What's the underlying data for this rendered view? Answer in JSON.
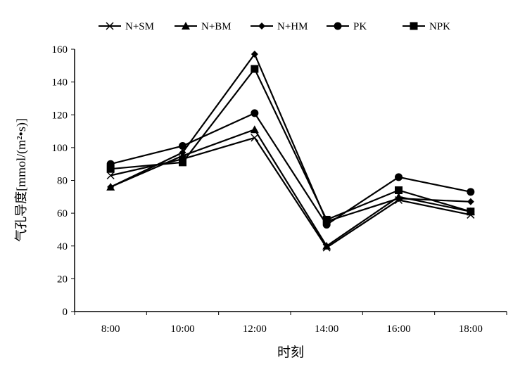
{
  "chart_data": {
    "type": "line",
    "title": "",
    "xlabel": "时刻",
    "ylabel": "气孔导度[mmol/(m²•s)]",
    "categories": [
      "8:00",
      "10:00",
      "12:00",
      "14:00",
      "16:00",
      "18:00"
    ],
    "ylim": [
      0,
      160
    ],
    "yticks": [
      0,
      20,
      40,
      60,
      80,
      100,
      120,
      140,
      160
    ],
    "grid": false,
    "legend_position": "top",
    "series": [
      {
        "name": "N+SM",
        "marker": "x",
        "values": [
          83,
          93,
          106,
          39,
          68,
          59
        ]
      },
      {
        "name": "N+BM",
        "marker": "triangle",
        "values": [
          76,
          95,
          111,
          40,
          70,
          61
        ]
      },
      {
        "name": "N+HM",
        "marker": "diamond",
        "values": [
          76,
          97,
          157,
          55,
          69,
          67
        ]
      },
      {
        "name": "PK",
        "marker": "circle",
        "values": [
          90,
          101,
          121,
          53,
          82,
          73
        ]
      },
      {
        "name": "NPK",
        "marker": "square",
        "values": [
          87,
          91,
          148,
          56,
          74,
          61
        ]
      }
    ],
    "colors": {
      "line": "#000000",
      "ylabel": "#8b5a3c",
      "xlabel": "#8b5a3c"
    }
  }
}
